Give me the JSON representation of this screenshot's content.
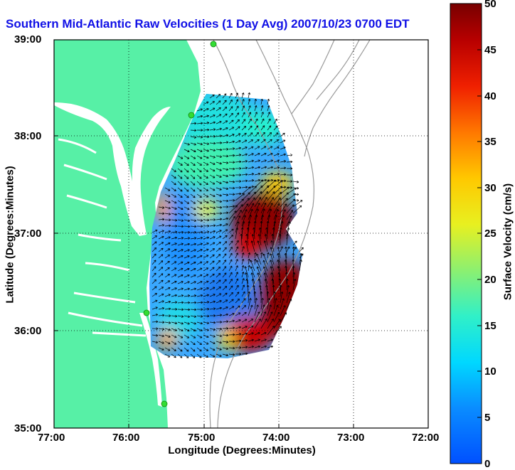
{
  "title": "Southern Mid-Atlantic Raw Velocities (1 Day Avg) 2007/10/23 0700 EDT",
  "x_axis": {
    "label": "Longitude (Degrees:Minutes)",
    "ticks": [
      "77:00",
      "76:00",
      "75:00",
      "74:00",
      "73:00",
      "72:00"
    ]
  },
  "y_axis": {
    "label": "Latitude (Degrees:Minutes)",
    "ticks": [
      "39:00",
      "38:00",
      "37:00",
      "36:00",
      "35:00"
    ]
  },
  "colorbar": {
    "label": "Surface Velocity (cm/s)",
    "ticks": [
      "50",
      "45",
      "40",
      "35",
      "30",
      "25",
      "20",
      "15",
      "10",
      "5",
      "0"
    ],
    "range": [
      0,
      50
    ]
  },
  "colors": {
    "land": "#57f0a6",
    "ocean": "#ffffff",
    "title": "#1010e6",
    "bathymetry": "#9a9a9a",
    "station": "#33dd33"
  },
  "map": {
    "lon_range": [
      -77,
      -72
    ],
    "lat_range": [
      35,
      39
    ],
    "grid": "dotted",
    "vector_color": "black"
  }
}
